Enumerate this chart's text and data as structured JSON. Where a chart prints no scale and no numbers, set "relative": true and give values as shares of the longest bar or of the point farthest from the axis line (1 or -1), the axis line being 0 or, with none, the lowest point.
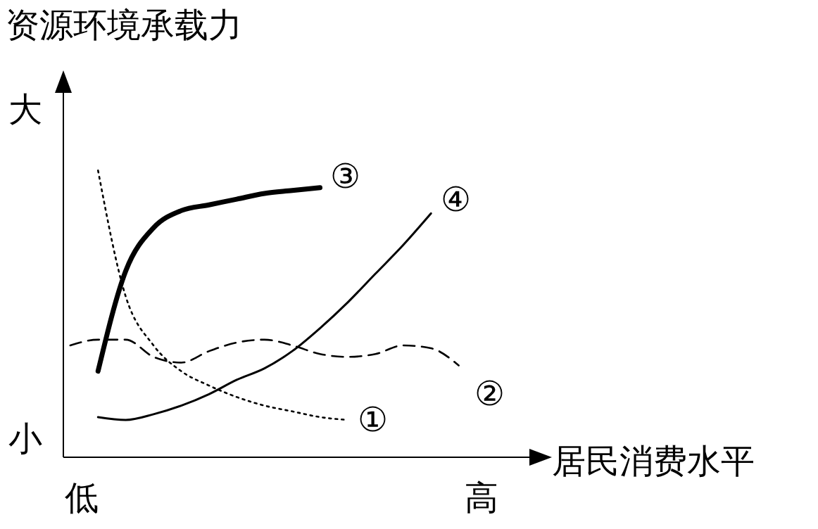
{
  "chart_data": {
    "type": "line",
    "relative": true,
    "ylabel": "资源环境承载力",
    "xlabel": "居民消费水平",
    "annotations": [
      "大",
      "小",
      "低",
      "高"
    ],
    "categories": [
      null,
      null,
      null,
      null,
      null,
      null,
      null,
      null,
      null,
      null,
      null,
      null,
      null,
      null,
      null
    ],
    "series": [
      {
        "name": "①",
        "color": "#000000",
        "line_style": "dotted",
        "values": [
          null,
          1.0,
          0.56,
          0.39,
          0.3,
          0.25,
          0.21,
          0.18,
          0.16,
          0.14,
          0.13,
          null,
          null,
          null,
          null
        ]
      },
      {
        "name": "②",
        "color": "#000000",
        "line_style": "dashed",
        "values": [
          0.39,
          0.41,
          0.41,
          0.35,
          0.33,
          0.37,
          0.4,
          0.41,
          0.39,
          0.36,
          0.35,
          0.36,
          0.39,
          0.38,
          0.32
        ]
      },
      {
        "name": "③",
        "color": "#000000",
        "line_style": "solid",
        "values": [
          null,
          0.3,
          0.65,
          0.8,
          0.86,
          0.88,
          0.9,
          0.92,
          0.93,
          0.94,
          null,
          null,
          null,
          null,
          null
        ]
      },
      {
        "name": "④",
        "color": "#000000",
        "line_style": "solid",
        "values": [
          null,
          0.14,
          0.13,
          0.15,
          0.18,
          0.22,
          0.27,
          0.31,
          0.37,
          0.45,
          0.54,
          0.64,
          0.74,
          0.85,
          null
        ]
      }
    ],
    "legend": false,
    "grid": false,
    "marker": "none"
  }
}
